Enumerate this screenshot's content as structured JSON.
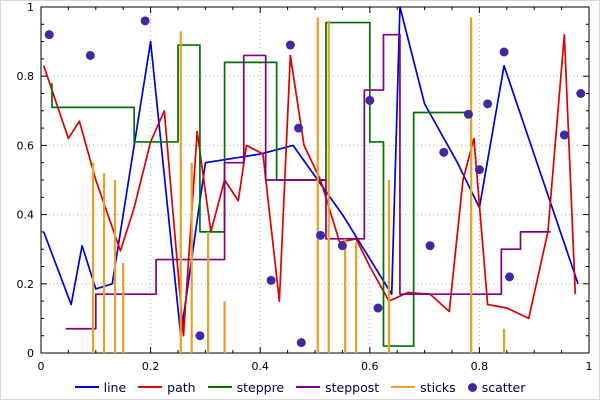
{
  "chart_data": {
    "type": "mixed",
    "title": "",
    "xlabel": "",
    "ylabel": "",
    "xlim": [
      0,
      1
    ],
    "ylim": [
      0,
      1
    ],
    "x_major_ticks": [
      0,
      0.2,
      0.4,
      0.6,
      0.8,
      1
    ],
    "y_major_ticks": [
      0,
      0.2,
      0.4,
      0.6,
      0.8,
      1
    ],
    "x_tick_labels": [
      "0",
      "0.2",
      "0.4",
      "0.6",
      "0.8",
      "1"
    ],
    "y_tick_labels": [
      "0",
      "0.2",
      "0.4",
      "0.6",
      "0.8",
      "1"
    ],
    "minor_tick_step": 0.05,
    "grid": "dotted-major",
    "legend_position": "bottom",
    "series": [
      {
        "name": "line",
        "type": "line",
        "color": "#0000dd",
        "points": [
          [
            0.005,
            0.35
          ],
          [
            0.055,
            0.14
          ],
          [
            0.075,
            0.31
          ],
          [
            0.1,
            0.185
          ],
          [
            0.13,
            0.2
          ],
          [
            0.2,
            0.9
          ],
          [
            0.255,
            0.05
          ],
          [
            0.3,
            0.55
          ],
          [
            0.4,
            0.575
          ],
          [
            0.46,
            0.6
          ],
          [
            0.55,
            0.4
          ],
          [
            0.64,
            0.17
          ],
          [
            0.655,
            1.0
          ],
          [
            0.7,
            0.72
          ],
          [
            0.76,
            0.55
          ],
          [
            0.8,
            0.42
          ],
          [
            0.845,
            0.83
          ],
          [
            0.98,
            0.2
          ]
        ]
      },
      {
        "name": "path",
        "type": "line",
        "color": "#dd0000",
        "points": [
          [
            0.005,
            0.83
          ],
          [
            0.05,
            0.62
          ],
          [
            0.07,
            0.67
          ],
          [
            0.1,
            0.5
          ],
          [
            0.145,
            0.295
          ],
          [
            0.17,
            0.42
          ],
          [
            0.2,
            0.61
          ],
          [
            0.225,
            0.7
          ],
          [
            0.26,
            0.05
          ],
          [
            0.285,
            0.64
          ],
          [
            0.31,
            0.35
          ],
          [
            0.335,
            0.5
          ],
          [
            0.36,
            0.44
          ],
          [
            0.375,
            0.6
          ],
          [
            0.405,
            0.575
          ],
          [
            0.435,
            0.15
          ],
          [
            0.455,
            0.86
          ],
          [
            0.48,
            0.6
          ],
          [
            0.51,
            0.5
          ],
          [
            0.545,
            0.32
          ],
          [
            0.575,
            0.33
          ],
          [
            0.6,
            0.25
          ],
          [
            0.635,
            0.15
          ],
          [
            0.67,
            0.175
          ],
          [
            0.71,
            0.17
          ],
          [
            0.745,
            0.12
          ],
          [
            0.77,
            0.5
          ],
          [
            0.79,
            0.62
          ],
          [
            0.815,
            0.14
          ],
          [
            0.85,
            0.13
          ],
          [
            0.89,
            0.1
          ],
          [
            0.925,
            0.35
          ],
          [
            0.955,
            0.92
          ],
          [
            0.975,
            0.17
          ]
        ]
      },
      {
        "name": "steppre",
        "type": "steps-pre",
        "color": "#007000",
        "points": [
          [
            0.02,
            0.78
          ],
          [
            0.17,
            0.71
          ],
          [
            0.25,
            0.61
          ],
          [
            0.29,
            0.89
          ],
          [
            0.335,
            0.35
          ],
          [
            0.43,
            0.84
          ],
          [
            0.52,
            0.5
          ],
          [
            0.6,
            0.955
          ],
          [
            0.625,
            0.61
          ],
          [
            0.68,
            0.02
          ],
          [
            0.78,
            0.695
          ]
        ]
      },
      {
        "name": "steppost",
        "type": "steps-post",
        "color": "#800080",
        "points": [
          [
            0.045,
            0.07
          ],
          [
            0.1,
            0.17
          ],
          [
            0.21,
            0.27
          ],
          [
            0.335,
            0.55
          ],
          [
            0.37,
            0.86
          ],
          [
            0.41,
            0.5
          ],
          [
            0.52,
            0.33
          ],
          [
            0.59,
            0.76
          ],
          [
            0.625,
            0.92
          ],
          [
            0.655,
            0.17
          ],
          [
            0.84,
            0.3
          ],
          [
            0.875,
            0.35
          ],
          [
            0.93,
            0.35
          ]
        ]
      },
      {
        "name": "sticks",
        "type": "sticks",
        "color": "#e8a028",
        "points": [
          [
            0.095,
            0.55
          ],
          [
            0.115,
            0.52
          ],
          [
            0.135,
            0.5
          ],
          [
            0.15,
            0.26
          ],
          [
            0.255,
            0.93
          ],
          [
            0.275,
            0.55
          ],
          [
            0.305,
            0.35
          ],
          [
            0.335,
            0.15
          ],
          [
            0.505,
            0.97
          ],
          [
            0.525,
            0.96
          ],
          [
            0.555,
            0.33
          ],
          [
            0.575,
            0.32
          ],
          [
            0.635,
            0.5
          ],
          [
            0.785,
            0.97
          ],
          [
            0.845,
            0.07
          ]
        ]
      },
      {
        "name": "scatter",
        "type": "scatter",
        "color": "#4527a0",
        "points": [
          [
            0.015,
            0.92
          ],
          [
            0.09,
            0.86
          ],
          [
            0.19,
            0.96
          ],
          [
            0.29,
            0.05
          ],
          [
            0.42,
            0.21
          ],
          [
            0.455,
            0.89
          ],
          [
            0.47,
            0.65
          ],
          [
            0.475,
            0.03
          ],
          [
            0.51,
            0.34
          ],
          [
            0.55,
            0.31
          ],
          [
            0.6,
            0.73
          ],
          [
            0.615,
            0.13
          ],
          [
            0.71,
            0.31
          ],
          [
            0.735,
            0.58
          ],
          [
            0.78,
            0.69
          ],
          [
            0.8,
            0.53
          ],
          [
            0.815,
            0.72
          ],
          [
            0.845,
            0.87
          ],
          [
            0.855,
            0.22
          ],
          [
            0.955,
            0.63
          ],
          [
            0.985,
            0.75
          ]
        ]
      }
    ]
  },
  "legend": {
    "items": [
      "line",
      "path",
      "steppre",
      "steppost",
      "sticks",
      "scatter"
    ],
    "text_color": "#00004b"
  },
  "style": {
    "grid_color": "#b4b4b4",
    "axis_color": "#000000",
    "background": "#ffffff"
  }
}
